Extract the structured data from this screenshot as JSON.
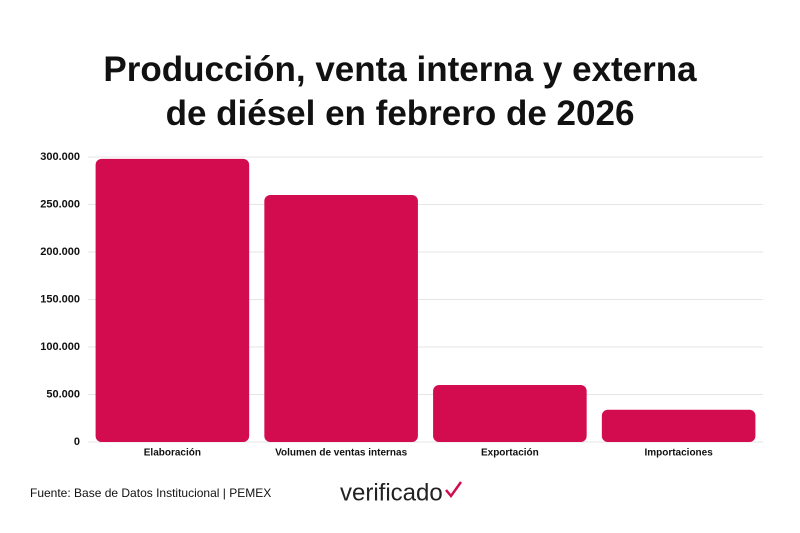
{
  "chart_data": {
    "type": "bar",
    "title": "Producción, venta interna y externa de diésel en febrero de 2026",
    "categories": [
      "Elaboración",
      "Volumen de ventas internas",
      "Exportación",
      "Importaciones"
    ],
    "values": [
      298000,
      260000,
      60000,
      34000
    ],
    "color": "#d30b4f",
    "ylim": [
      0,
      300000
    ],
    "yticks": [
      0,
      {
        "value": 50000,
        "label": "50.000"
      },
      {
        "value": 100000,
        "label": "100.000"
      },
      {
        "value": 150000,
        "label": "150.000"
      },
      {
        "value": 200000,
        "label": "200.000"
      },
      {
        "value": 250000,
        "label": "250.000"
      },
      {
        "value": 300000,
        "label": "300.000"
      }
    ],
    "grid": true,
    "source": "Fuente: Base de Datos Institucional | PEMEX",
    "brand": "verificado"
  }
}
